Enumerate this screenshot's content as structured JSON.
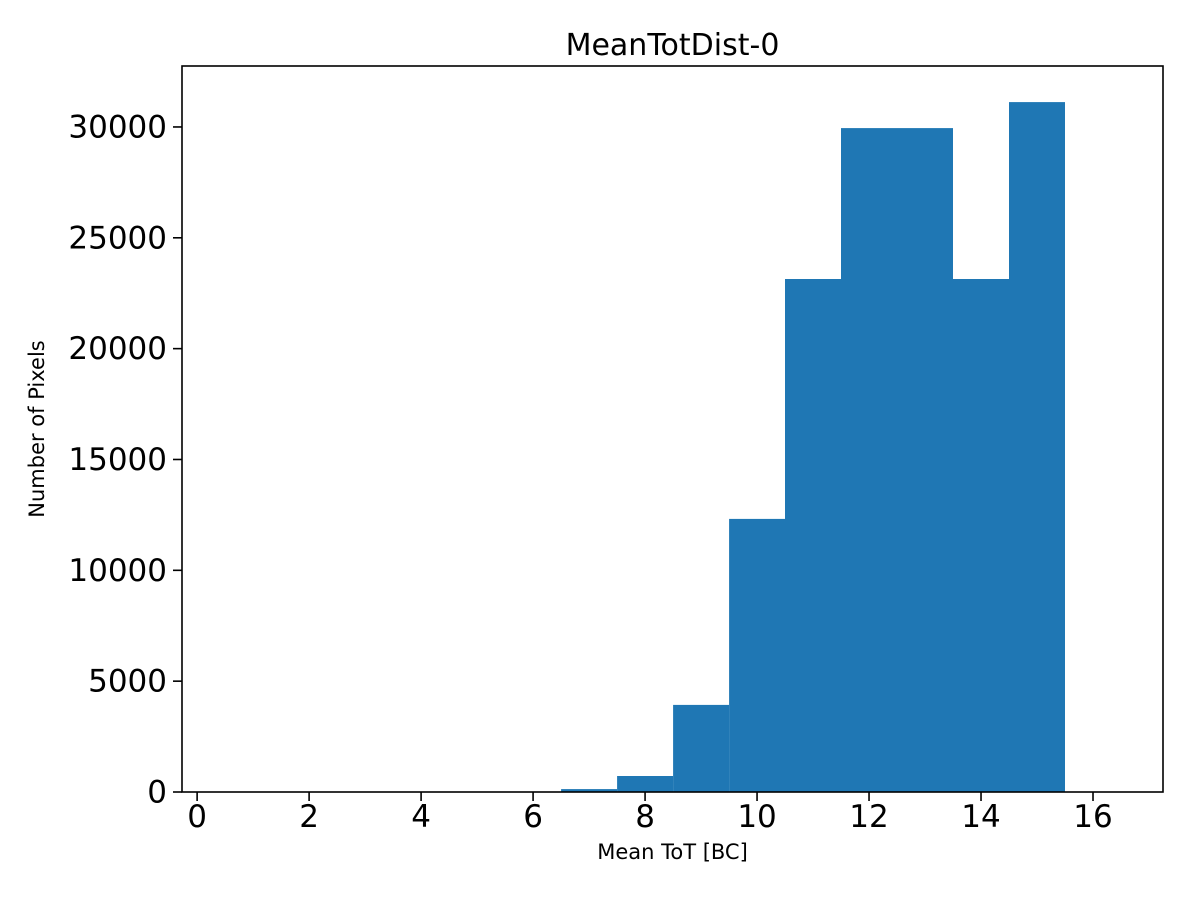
{
  "chart_data": {
    "type": "histogram",
    "title": "MeanTotDist-0",
    "xlabel": "Mean ToT [BC]",
    "ylabel": "Number of Pixels",
    "bin_edges": [
      6.5,
      7.5,
      8.5,
      9.5,
      10.5,
      11.5,
      12.5,
      13.5,
      14.5,
      15.5
    ],
    "counts": [
      130,
      720,
      3930,
      12320,
      23140,
      29950,
      29950,
      23140,
      31120
    ],
    "xticks": [
      0,
      2,
      4,
      6,
      8,
      10,
      12,
      14,
      16
    ],
    "yticks": [
      0,
      5000,
      10000,
      15000,
      20000,
      25000,
      30000
    ],
    "xlim": [
      -0.27,
      17.25
    ],
    "ylim": [
      0,
      32750
    ],
    "bar_color": "#1f77b4",
    "axis_color": "#000000",
    "background": "#ffffff",
    "grid": false,
    "legend": null
  }
}
